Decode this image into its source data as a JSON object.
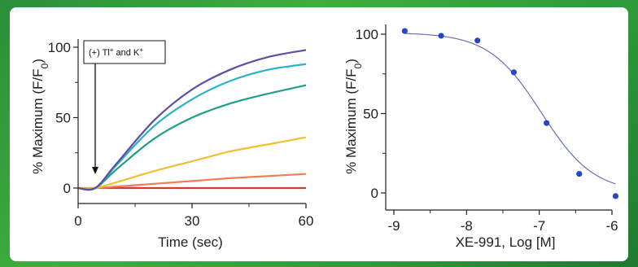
{
  "colors": {
    "background_green": "#2f9a3a",
    "panel": "#ffffff",
    "fit_line": "#6a6fb8",
    "points": "#2746c8"
  },
  "chart_data": [
    {
      "type": "line",
      "title": "",
      "xlabel": "Time (sec)",
      "ylabel": "% Maximum (F/F0)",
      "ylabel_main": "% Maximum (F/F",
      "ylabel_sub": "0",
      "ylabel_close": ")",
      "xlim": [
        0,
        60
      ],
      "ylim": [
        0,
        100
      ],
      "xticks": [
        0,
        30,
        60
      ],
      "yticks": [
        0,
        50,
        100
      ],
      "grid": false,
      "annotation": {
        "text_main": "(+) Tl",
        "sup1": "+",
        "text_mid": " and K",
        "sup2": "+",
        "arrow_x": 4.5
      },
      "x": [
        0,
        4.5,
        10,
        20,
        30,
        40,
        50,
        60
      ],
      "series": [
        {
          "color": "#5d4fa8",
          "values": [
            0,
            0,
            17,
            48,
            70,
            84,
            93,
            98
          ]
        },
        {
          "color": "#26b3c6",
          "values": [
            0,
            0,
            16,
            44,
            63,
            76,
            84,
            88
          ]
        },
        {
          "color": "#1f9f86",
          "values": [
            0,
            0,
            13,
            35,
            50,
            60,
            67,
            73
          ]
        },
        {
          "color": "#f2c02e",
          "values": [
            0,
            0,
            4,
            12,
            19,
            26,
            31,
            36
          ]
        },
        {
          "color": "#ef7f52",
          "values": [
            0,
            0,
            1,
            3,
            5,
            7,
            8.5,
            10
          ]
        },
        {
          "color": "#d83a2a",
          "values": [
            0,
            0,
            0,
            0,
            0,
            0,
            0,
            0
          ]
        }
      ]
    },
    {
      "type": "scatter",
      "title": "",
      "xlabel": "XE-991, Log [M]",
      "ylabel": "% Maximum (F/F0)",
      "ylabel_main": "% Maximum (F/F",
      "ylabel_sub": "0",
      "ylabel_close": ")",
      "xlim": [
        -9,
        -6
      ],
      "ylim": [
        0,
        100
      ],
      "xticks": [
        -9,
        -8,
        -7,
        -6
      ],
      "yticks": [
        0,
        50,
        100
      ],
      "grid": false,
      "fit": {
        "top": 101,
        "bottom": 0,
        "log_ic50": -6.97,
        "hill": 1.2
      },
      "points": [
        {
          "x": -8.85,
          "y": 102
        },
        {
          "x": -8.35,
          "y": 99
        },
        {
          "x": -7.85,
          "y": 96
        },
        {
          "x": -7.35,
          "y": 76
        },
        {
          "x": -6.9,
          "y": 44
        },
        {
          "x": -6.45,
          "y": 12
        },
        {
          "x": -5.95,
          "y": -2
        }
      ]
    }
  ]
}
